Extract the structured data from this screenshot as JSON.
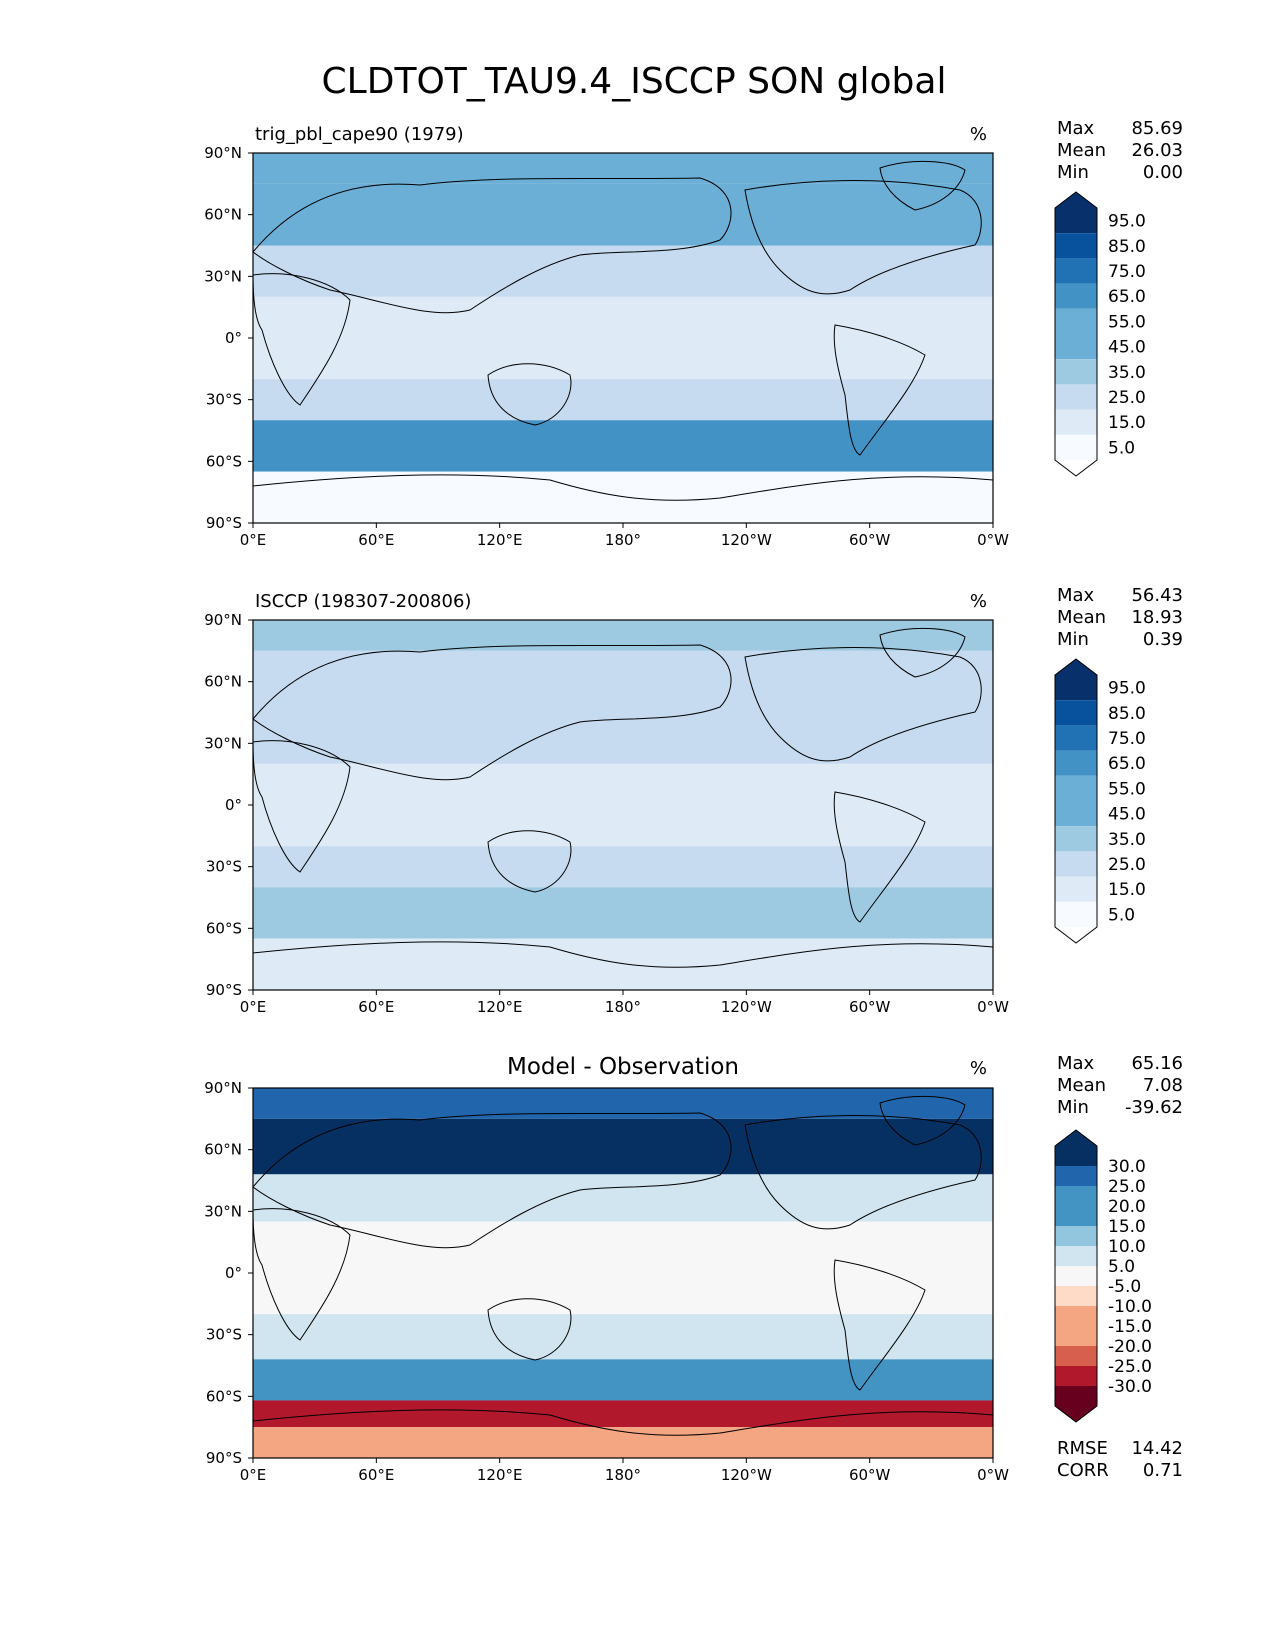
{
  "title": "CLDTOT_TAU9.4_ISCCP SON global",
  "colors": {
    "blues": [
      "#f7fbff",
      "#deebf7",
      "#c6dbef",
      "#9ecae1",
      "#6baed6",
      "#4292c6",
      "#2171b5",
      "#08519c",
      "#08306b"
    ],
    "rdbu": [
      "#67001f",
      "#b2182b",
      "#d6604d",
      "#f4a582",
      "#fddbc7",
      "#f7f7f7",
      "#d1e5f0",
      "#92c5de",
      "#4393c3",
      "#2166ac",
      "#053061"
    ],
    "outline": "#000000"
  },
  "chart_data": [
    {
      "type": "heatmap",
      "panel_title": "trig_pbl_cape90 (1979)",
      "units": "%",
      "x_ticks": [
        "0°E",
        "60°E",
        "120°E",
        "180°",
        "120°W",
        "60°W",
        "0°W"
      ],
      "y_ticks": [
        "90°N",
        "60°N",
        "30°N",
        "0°",
        "30°S",
        "60°S",
        "90°S"
      ],
      "xlim": [
        0,
        360
      ],
      "ylim": [
        -90,
        90
      ],
      "stats": [
        {
          "label": "Max",
          "value": "85.69"
        },
        {
          "label": "Mean",
          "value": "26.03"
        },
        {
          "label": "Min",
          "value": "0.00"
        }
      ],
      "colorbar": {
        "levels": [
          0,
          10,
          20,
          30,
          40,
          50,
          60,
          70,
          80,
          90,
          100
        ],
        "ticks": [
          "95.0",
          "85.0",
          "75.0",
          "65.0",
          "55.0",
          "45.0",
          "35.0",
          "25.0",
          "15.0",
          "5.0"
        ],
        "extend": "both"
      },
      "scheme": "blues"
    },
    {
      "type": "heatmap",
      "panel_title": "ISCCP (198307-200806)",
      "units": "%",
      "x_ticks": [
        "0°E",
        "60°E",
        "120°E",
        "180°",
        "120°W",
        "60°W",
        "0°W"
      ],
      "y_ticks": [
        "90°N",
        "60°N",
        "30°N",
        "0°",
        "30°S",
        "60°S",
        "90°S"
      ],
      "xlim": [
        0,
        360
      ],
      "ylim": [
        -90,
        90
      ],
      "stats": [
        {
          "label": "Max",
          "value": "56.43"
        },
        {
          "label": "Mean",
          "value": "18.93"
        },
        {
          "label": "Min",
          "value": "0.39"
        }
      ],
      "colorbar": {
        "levels": [
          0,
          10,
          20,
          30,
          40,
          50,
          60,
          70,
          80,
          90,
          100
        ],
        "ticks": [
          "95.0",
          "85.0",
          "75.0",
          "65.0",
          "55.0",
          "45.0",
          "35.0",
          "25.0",
          "15.0",
          "5.0"
        ],
        "extend": "both"
      },
      "scheme": "blues"
    },
    {
      "type": "heatmap",
      "panel_title": "Model - Observation",
      "units": "%",
      "x_ticks": [
        "0°E",
        "60°E",
        "120°E",
        "180°",
        "120°W",
        "60°W",
        "0°W"
      ],
      "y_ticks": [
        "90°N",
        "60°N",
        "30°N",
        "0°",
        "30°S",
        "60°S",
        "90°S"
      ],
      "xlim": [
        0,
        360
      ],
      "ylim": [
        -90,
        90
      ],
      "stats": [
        {
          "label": "Max",
          "value": "65.16"
        },
        {
          "label": "Mean",
          "value": "7.08"
        },
        {
          "label": "Min",
          "value": "-39.62"
        }
      ],
      "colorbar": {
        "levels": [
          -35,
          -30,
          -25,
          -20,
          -15,
          -10,
          -5,
          5,
          10,
          15,
          20,
          25,
          30,
          35
        ],
        "ticks": [
          "30.0",
          "25.0",
          "20.0",
          "15.0",
          "10.0",
          "5.0",
          "-5.0",
          "-10.0",
          "-15.0",
          "-20.0",
          "-25.0",
          "-30.0"
        ],
        "extend": "both"
      },
      "scheme": "rdbu",
      "metrics": [
        {
          "label": "RMSE",
          "value": "14.42"
        },
        {
          "label": "CORR",
          "value": "0.71"
        }
      ]
    }
  ]
}
